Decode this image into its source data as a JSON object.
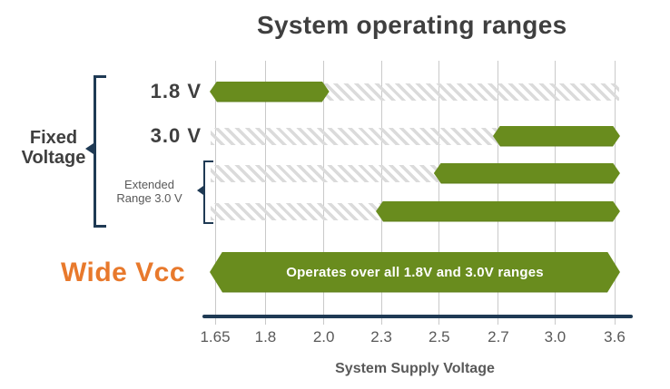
{
  "chart_data": {
    "type": "bar",
    "title": "System operating ranges",
    "xlabel": "System Supply Voltage",
    "x_ticks": [
      "1.65",
      "1.8",
      "2.0",
      "2.3",
      "2.5",
      "2.7",
      "3.0",
      "3.6"
    ],
    "tick_positions_pct": [
      0,
      12.6,
      27.2,
      41.6,
      56.1,
      70.9,
      85.1,
      100
    ],
    "group_label": "Fixed Voltage",
    "rows": [
      {
        "label": "1.8 V",
        "supported": {
          "from": "1.65",
          "to": "2.0"
        },
        "unsupported": {
          "from": "2.0",
          "to": "3.6"
        }
      },
      {
        "label": "3.0 V",
        "supported": {
          "from": "2.7",
          "to": "3.6"
        },
        "unsupported": {
          "from": "1.65",
          "to": "2.7"
        }
      },
      {
        "label": "Extended Range 3.0 V",
        "supported": {
          "from": "2.5",
          "to": "3.6"
        },
        "unsupported": {
          "from": "1.65",
          "to": "2.5"
        }
      },
      {
        "label": "Extended Range 3.0 V",
        "supported": {
          "from": "2.3",
          "to": "3.6"
        },
        "unsupported": {
          "from": "1.65",
          "to": "2.3"
        }
      }
    ],
    "wide_row": {
      "label": "Wide Vcc",
      "supported": {
        "from": "1.65",
        "to": "3.6"
      },
      "bar_label": "Operates over all 1.8V and 3.0V ranges"
    }
  },
  "annotations": {
    "fixed_voltage": {
      "lines": [
        "Fixed",
        "Voltage"
      ]
    },
    "extended_range": {
      "lines": [
        "Extended",
        "Range 3.0 V"
      ]
    }
  },
  "colors": {
    "green": "#698C1E",
    "navy": "#1F3A54",
    "orange": "#E8792C",
    "title_text": "#3F3F3F",
    "label_text": "#595959",
    "gridline": "#C9C9C9",
    "hatch": "#DBDBDB",
    "bar_text": "#FFFFFF"
  }
}
